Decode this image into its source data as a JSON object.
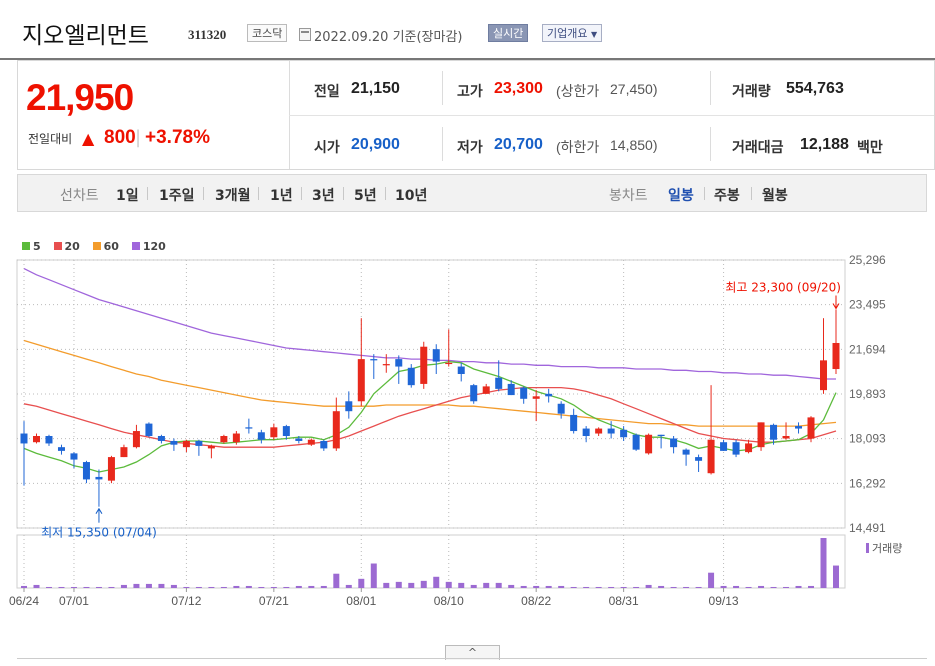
{
  "header": {
    "name": "지오엘리먼트",
    "code": "311320",
    "market": "코스닥",
    "as_of": "2022.09.20 기준(장마감)",
    "realtime_label": "실시간",
    "company_overview_label": "기업개요"
  },
  "price": {
    "current": "21,950",
    "change_label": "전일대비",
    "change_arrow": "▲",
    "change": "800",
    "change_pct": "+3.78%"
  },
  "stats": {
    "prev_close_label": "전일",
    "prev_close": "21,150",
    "open_label": "시가",
    "open": "20,900",
    "high_label": "고가",
    "high": "23,300",
    "upper_limit_label": "(상한가",
    "upper_limit": "27,450)",
    "low_label": "저가",
    "low": "20,700",
    "lower_limit_label": "(하한가",
    "lower_limit": "14,850)",
    "volume_label": "거래량",
    "volume": "554,763",
    "amount_label": "거래대금",
    "amount": "12,188",
    "amount_unit": "백만"
  },
  "tabs": {
    "line_label": "선차트",
    "line_tabs": [
      "1일",
      "1주일",
      "3개월",
      "1년",
      "3년",
      "5년",
      "10년"
    ],
    "candle_label": "봉차트",
    "candle_tabs": [
      "일봉",
      "주봉",
      "월봉"
    ],
    "active": "일봉"
  },
  "toggle_label": "^",
  "colors": {
    "up": "#e8291c",
    "down": "#1f66d6",
    "ma5": "#5cbb3c",
    "ma20": "#e84f4f",
    "ma60": "#f39c2c",
    "ma120": "#a066dc",
    "volume": "#9c6ad2"
  },
  "chart_data": {
    "type": "candlestick",
    "legend": [
      {
        "name": "5",
        "color": "#5cbb3c"
      },
      {
        "name": "20",
        "color": "#e84f4f"
      },
      {
        "name": "60",
        "color": "#f39c2c"
      },
      {
        "name": "120",
        "color": "#a066dc"
      }
    ],
    "y_ticks": [
      "25,296",
      "23,495",
      "21,694",
      "19,893",
      "18,093",
      "16,292",
      "14,491"
    ],
    "ylim": [
      14491,
      25296
    ],
    "x_ticks": [
      "06/24",
      "07/01",
      "07/12",
      "07/21",
      "08/01",
      "08/10",
      "08/22",
      "08/31",
      "09/13"
    ],
    "high_annotation": "최고 23,300 (09/20)",
    "low_annotation": "최저 15,350 (07/04)",
    "volume_legend": "거래량",
    "candles": [
      [
        18300,
        17900,
        18800,
        16200
      ],
      [
        17950,
        18200,
        18300,
        17900
      ],
      [
        18200,
        17900,
        18250,
        17800
      ],
      [
        17750,
        17600,
        17850,
        17450
      ],
      [
        17500,
        17250,
        17550,
        16900
      ],
      [
        17150,
        16450,
        17200,
        16300
      ],
      [
        16550,
        16450,
        16850,
        15350
      ],
      [
        16400,
        17350,
        17400,
        16300
      ],
      [
        17350,
        17750,
        17850,
        17350
      ],
      [
        17750,
        18400,
        18650,
        17700
      ],
      [
        18700,
        18200,
        18750,
        18150
      ],
      [
        18200,
        18000,
        18250,
        17900
      ],
      [
        18000,
        17850,
        18100,
        17600
      ],
      [
        17750,
        18000,
        18050,
        17550
      ],
      [
        18000,
        17800,
        18050,
        17400
      ],
      [
        17700,
        17800,
        17850,
        17300
      ],
      [
        17950,
        18200,
        18250,
        17900
      ],
      [
        17950,
        18300,
        18400,
        17850
      ],
      [
        18550,
        18500,
        18900,
        18300
      ],
      [
        18350,
        18050,
        18450,
        17900
      ],
      [
        18150,
        18550,
        18700,
        18050
      ],
      [
        18600,
        18200,
        18650,
        18050
      ],
      [
        18100,
        18000,
        18200,
        17900
      ],
      [
        17850,
        18050,
        18100,
        17800
      ],
      [
        18000,
        17700,
        18050,
        17600
      ],
      [
        17700,
        19200,
        19750,
        17600
      ],
      [
        19600,
        19200,
        20000,
        18900
      ],
      [
        19600,
        21300,
        22950,
        19400
      ],
      [
        21300,
        21250,
        21500,
        20500
      ],
      [
        21050,
        21100,
        21500,
        20750
      ],
      [
        21300,
        21000,
        21450,
        20300
      ],
      [
        20950,
        20250,
        21100,
        20150
      ],
      [
        20300,
        21800,
        22000,
        20100
      ],
      [
        21700,
        21200,
        21900,
        20700
      ],
      [
        21100,
        21150,
        22500,
        21000
      ],
      [
        21000,
        20700,
        21150,
        20400
      ],
      [
        20250,
        19600,
        20300,
        19500
      ],
      [
        19900,
        20200,
        20300,
        19900
      ],
      [
        20550,
        20100,
        21250,
        20000
      ],
      [
        20300,
        19850,
        20450,
        19850
      ],
      [
        20150,
        19700,
        20200,
        19500
      ],
      [
        19700,
        19800,
        20050,
        18800
      ],
      [
        19900,
        19800,
        20100,
        19550
      ],
      [
        19500,
        19100,
        19600,
        18900
      ],
      [
        19050,
        18400,
        19300,
        18300
      ],
      [
        18500,
        18200,
        18600,
        17950
      ],
      [
        18300,
        18500,
        18550,
        18200
      ],
      [
        18500,
        18300,
        18800,
        18100
      ],
      [
        18450,
        18150,
        18600,
        18000
      ],
      [
        18250,
        17650,
        18300,
        17600
      ],
      [
        17500,
        18250,
        18300,
        17450
      ],
      [
        18250,
        18200,
        18250,
        17700
      ],
      [
        18100,
        17750,
        18200,
        17500
      ],
      [
        17650,
        17450,
        17700,
        17000
      ],
      [
        17350,
        17200,
        17450,
        16750
      ],
      [
        16700,
        18050,
        20250,
        16650
      ],
      [
        17950,
        17600,
        18050,
        17600
      ],
      [
        17950,
        17450,
        18050,
        17350
      ],
      [
        17550,
        17900,
        18050,
        17500
      ],
      [
        17750,
        18750,
        18750,
        17600
      ],
      [
        18650,
        18050,
        18700,
        17850
      ],
      [
        18100,
        18200,
        18750,
        18050
      ],
      [
        18600,
        18500,
        18750,
        18300
      ],
      [
        18100,
        18950,
        19000,
        17950
      ],
      [
        20050,
        21250,
        22950,
        19900
      ],
      [
        20900,
        21950,
        23300,
        20700
      ]
    ],
    "volume": [
      2,
      3,
      1,
      1,
      1,
      1,
      1,
      1,
      3,
      4,
      4,
      4,
      3,
      1,
      1,
      1,
      1,
      2,
      2,
      1,
      1,
      1,
      2,
      2,
      2,
      14,
      3,
      9,
      24,
      5,
      6,
      5,
      7,
      11,
      6,
      5,
      3,
      5,
      5,
      3,
      2,
      2,
      2,
      2,
      1,
      1,
      1,
      1,
      1,
      1,
      3,
      2,
      1,
      1,
      1,
      15,
      2,
      2,
      1,
      2,
      1,
      1,
      2,
      2,
      49,
      22
    ],
    "ma5": [
      17700,
      17500,
      17350,
      17200,
      17000,
      16900,
      16750,
      16850,
      16950,
      17150,
      17450,
      17800,
      17950,
      18000,
      18000,
      17950,
      17900,
      17950,
      18000,
      18050,
      18050,
      18100,
      18150,
      18150,
      18050,
      18250,
      18550,
      19150,
      19900,
      20350,
      20800,
      20900,
      21050,
      21100,
      21200,
      21150,
      20900,
      20750,
      20600,
      20400,
      20200,
      20000,
      19850,
      19700,
      19450,
      19100,
      18850,
      18650,
      18450,
      18250,
      18150,
      18150,
      18050,
      17900,
      17700,
      17800,
      17700,
      17600,
      17650,
      17850,
      17950,
      18000,
      18050,
      18300,
      18850,
      19950
    ],
    "ma20": [
      19500,
      19400,
      19250,
      19100,
      18950,
      18800,
      18650,
      18500,
      18350,
      18250,
      18150,
      18050,
      17950,
      17900,
      17850,
      17800,
      17750,
      17750,
      17750,
      17750,
      17750,
      17800,
      17850,
      17900,
      17950,
      18050,
      18200,
      18400,
      18600,
      18800,
      19000,
      19150,
      19300,
      19450,
      19600,
      19750,
      19850,
      19950,
      20050,
      20100,
      20150,
      20150,
      20150,
      20150,
      20100,
      20000,
      19850,
      19700,
      19500,
      19300,
      19100,
      18900,
      18700,
      18500,
      18300,
      18200,
      18100,
      18050,
      18000,
      17950,
      17950,
      18000,
      18050,
      18100,
      18250,
      18400
    ],
    "ma60": [
      22050,
      21900,
      21750,
      21600,
      21450,
      21300,
      21150,
      21000,
      20850,
      20700,
      20600,
      20450,
      20350,
      20250,
      20150,
      20050,
      19950,
      19850,
      19750,
      19650,
      19600,
      19550,
      19500,
      19450,
      19400,
      19400,
      19400,
      19400,
      19400,
      19450,
      19450,
      19450,
      19450,
      19450,
      19450,
      19400,
      19400,
      19350,
      19300,
      19250,
      19200,
      19150,
      19100,
      19050,
      19000,
      18950,
      18900,
      18850,
      18800,
      18750,
      18700,
      18700,
      18650,
      18650,
      18600,
      18600,
      18600,
      18600,
      18600,
      18600,
      18600,
      18600,
      18600,
      18650,
      18700,
      18750
    ],
    "ma120": [
      24950,
      24700,
      24500,
      24300,
      24100,
      23900,
      23700,
      23550,
      23400,
      23250,
      23100,
      22950,
      22800,
      22650,
      22500,
      22350,
      22250,
      22150,
      22050,
      21950,
      21850,
      21750,
      21700,
      21650,
      21600,
      21550,
      21500,
      21450,
      21400,
      21350,
      21350,
      21300,
      21300,
      21250,
      21250,
      21200,
      21200,
      21150,
      21150,
      21100,
      21100,
      21050,
      21050,
      21000,
      21000,
      21000,
      20950,
      20950,
      20950,
      20900,
      20900,
      20900,
      20850,
      20850,
      20800,
      20800,
      20750,
      20750,
      20700,
      20700,
      20650,
      20650,
      20600,
      20550,
      20500,
      20500
    ]
  }
}
